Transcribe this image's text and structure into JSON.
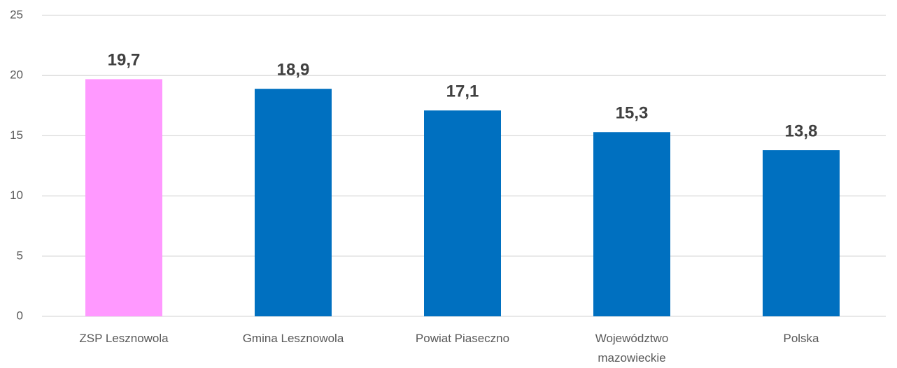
{
  "chart_data": {
    "type": "bar",
    "categories": [
      "ZSP Lesznowola",
      "Gmina Lesznowola",
      "Powiat Piaseczno",
      "Województwo mazowieckie",
      "Polska"
    ],
    "values": [
      19.7,
      18.9,
      17.1,
      15.3,
      13.8
    ],
    "value_labels": [
      "19,7",
      "18,9",
      "17,1",
      "15,3",
      "13,8"
    ],
    "colors": [
      "#ff99ff",
      "#0070c0",
      "#0070c0",
      "#0070c0",
      "#0070c0"
    ],
    "ylim": [
      0,
      25
    ],
    "yticks": [
      0,
      5,
      10,
      15,
      20,
      25
    ],
    "grid": true
  }
}
